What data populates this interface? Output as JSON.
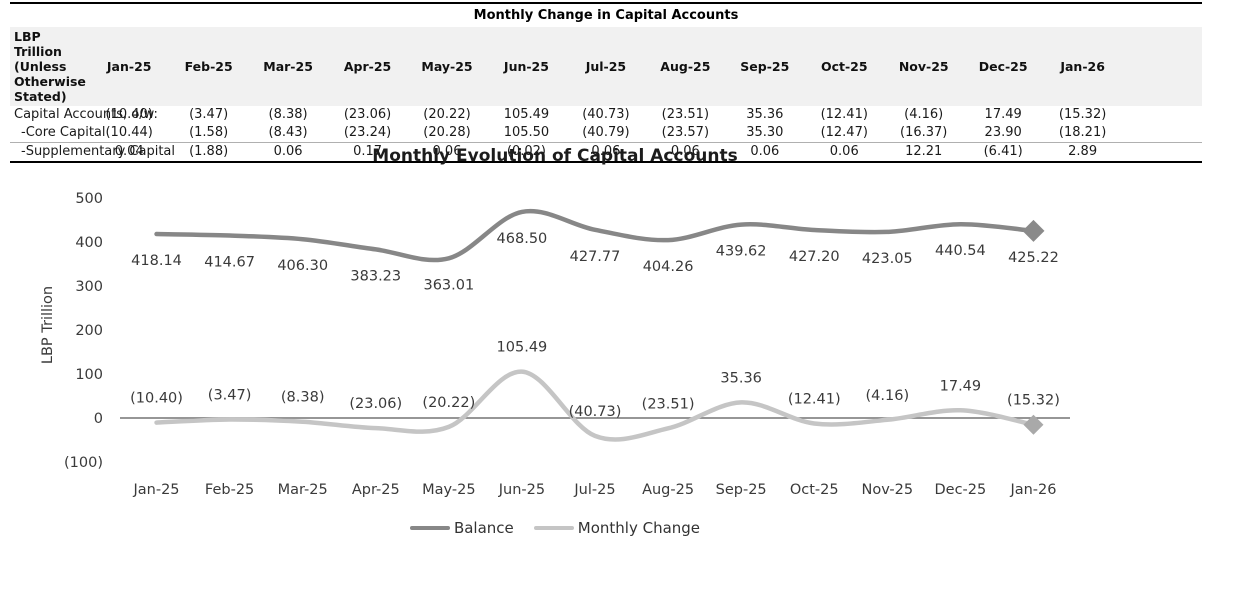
{
  "table": {
    "title": "Monthly Change in Capital Accounts",
    "header_label": "LBP Trillion (Unless Otherwise Stated)",
    "months": [
      "Jan-25",
      "Feb-25",
      "Mar-25",
      "Apr-25",
      "May-25",
      "Jun-25",
      "Jul-25",
      "Aug-25",
      "Sep-25",
      "Oct-25",
      "Nov-25",
      "Dec-25",
      "Jan-26"
    ],
    "rows": [
      {
        "label": "Capital Accounts, o/w:",
        "indent": false,
        "values": [
          "(10.40)",
          "(3.47)",
          "(8.38)",
          "(23.06)",
          "(20.22)",
          "105.49",
          "(40.73)",
          "(23.51)",
          "35.36",
          "(12.41)",
          "(4.16)",
          "17.49",
          "(15.32)"
        ]
      },
      {
        "label": "-Core Capital",
        "indent": true,
        "values": [
          "(10.44)",
          "(1.58)",
          "(8.43)",
          "(23.24)",
          "(20.28)",
          "105.50",
          "(40.79)",
          "(23.57)",
          "35.30",
          "(12.47)",
          "(16.37)",
          "23.90",
          "(18.21)"
        ]
      },
      {
        "label": "-Supplementary Capital",
        "indent": true,
        "values": [
          "0.04",
          "(1.88)",
          "0.06",
          "0.17",
          "0.06",
          "(0.02)",
          "0.06",
          "0.06",
          "0.06",
          "0.06",
          "12.21",
          "(6.41)",
          "2.89"
        ]
      }
    ]
  },
  "chart_data": {
    "type": "line",
    "title": "Monthly Evolution of Capital Accounts",
    "ylabel": "LBP Trillion",
    "categories": [
      "Jan-25",
      "Feb-25",
      "Mar-25",
      "Apr-25",
      "May-25",
      "Jun-25",
      "Jul-25",
      "Aug-25",
      "Sep-25",
      "Oct-25",
      "Nov-25",
      "Dec-25",
      "Jan-26"
    ],
    "series": [
      {
        "name": "Balance",
        "color": "#878787",
        "marker_color": "#8a8a8a",
        "values": [
          418.14,
          414.67,
          406.3,
          383.23,
          363.01,
          468.5,
          427.77,
          404.26,
          439.62,
          427.2,
          423.05,
          440.54,
          425.22
        ],
        "labels": [
          "418.14",
          "414.67",
          "406.30",
          "383.23",
          "363.01",
          "468.50",
          "427.77",
          "404.26",
          "439.62",
          "427.20",
          "423.05",
          "440.54",
          "425.22"
        ]
      },
      {
        "name": "Monthly Change",
        "color": "#c5c5c5",
        "marker_color": "#a9a9a9",
        "values": [
          -10.4,
          -3.47,
          -8.38,
          -23.06,
          -20.22,
          105.49,
          -40.73,
          -23.51,
          35.36,
          -12.41,
          -4.16,
          17.49,
          -15.32
        ],
        "labels": [
          "(10.40)",
          "(3.47)",
          "(8.38)",
          "(23.06)",
          "(20.22)",
          "105.49",
          "(40.73)",
          "(23.51)",
          "35.36",
          "(12.41)",
          "(4.16)",
          "17.49",
          "(15.32)"
        ]
      }
    ],
    "y_ticks": [
      "500",
      "400",
      "300",
      "200",
      "100",
      "0",
      "(100)"
    ],
    "y_tick_values": [
      500,
      400,
      300,
      200,
      100,
      0,
      -100
    ],
    "ylim": [
      -100,
      500
    ],
    "grid": false,
    "smooth": true,
    "legend_position": "bottom",
    "axis_line_color": "#737373",
    "label_color": "#3a3a3a"
  }
}
